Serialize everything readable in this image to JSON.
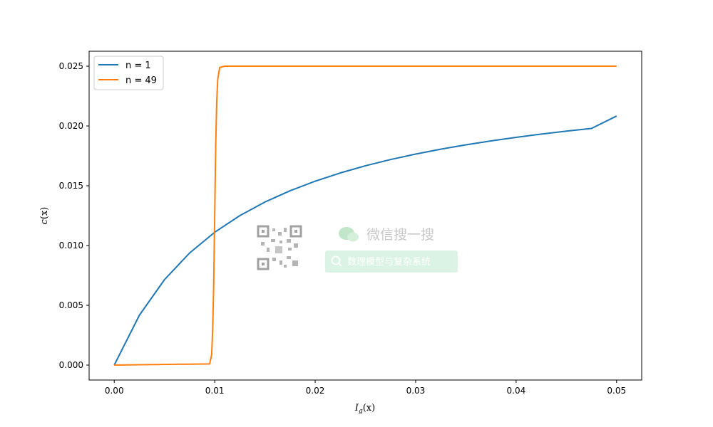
{
  "chart_data": {
    "type": "line",
    "title": "",
    "xlabel_main": "I",
    "xlabel_sub": "g",
    "xlabel_arg": "(x)",
    "ylabel_main": "c",
    "ylabel_arg": "(x)",
    "xlim": [
      -0.0025,
      0.0525
    ],
    "ylim": [
      -0.00125,
      0.02625
    ],
    "xticks": [
      0.0,
      0.01,
      0.02,
      0.03,
      0.04,
      0.05
    ],
    "xtick_labels": [
      "0.00",
      "0.01",
      "0.02",
      "0.03",
      "0.04",
      "0.05"
    ],
    "yticks": [
      0.0,
      0.005,
      0.01,
      0.015,
      0.02,
      0.025
    ],
    "ytick_labels": [
      "0.000",
      "0.005",
      "0.010",
      "0.015",
      "0.020",
      "0.025"
    ],
    "grid": false,
    "legend_position": "top-left",
    "series": [
      {
        "name": "n = 1",
        "color": "#1f77b4",
        "x": [
          0.0,
          0.0025,
          0.005,
          0.0075,
          0.01,
          0.0125,
          0.015,
          0.0175,
          0.02,
          0.0225,
          0.025,
          0.0275,
          0.03,
          0.0325,
          0.035,
          0.0375,
          0.04,
          0.0425,
          0.045,
          0.0475,
          0.05
        ],
        "y": [
          0.0,
          0.004167,
          0.007143,
          0.009375,
          0.01111,
          0.0125,
          0.01364,
          0.01458,
          0.01538,
          0.01607,
          0.01667,
          0.01719,
          0.01765,
          0.01806,
          0.01842,
          0.01875,
          0.01905,
          0.01932,
          0.01957,
          0.01979,
          0.02083
        ]
      },
      {
        "name": "n = 49",
        "color": "#ff7f0e",
        "x": [
          0.0,
          0.0095,
          0.0097,
          0.0098,
          0.0099,
          0.01,
          0.0101,
          0.0102,
          0.0103,
          0.0105,
          0.011,
          0.05
        ],
        "y": [
          0.0,
          0.0001,
          0.0009,
          0.0031,
          0.0067,
          0.0125,
          0.0183,
          0.022,
          0.0239,
          0.0249,
          0.025,
          0.025
        ]
      }
    ]
  },
  "watermark": {
    "title": "微信搜一搜",
    "search_text": "数理模型与复杂系统"
  }
}
